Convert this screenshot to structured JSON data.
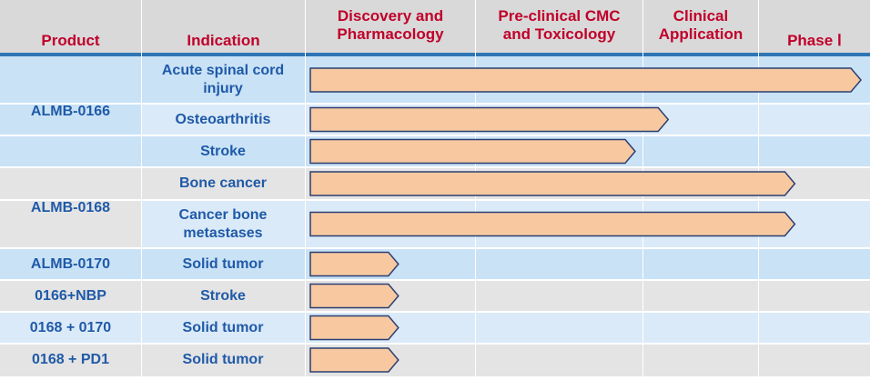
{
  "headers": {
    "product": "Product",
    "indication": "Indication",
    "stage1": [
      "Discovery and",
      "Pharmacology"
    ],
    "stage2": [
      "Pre-clinical CMC",
      "and Toxicology"
    ],
    "stage3": [
      "Clinical",
      "Application"
    ],
    "stage4": "Phase Ⅰ"
  },
  "groups": [
    {
      "product": "ALMB-0166",
      "rows": [
        0,
        1,
        2
      ]
    },
    {
      "product": "ALMB-0168",
      "rows": [
        3,
        4
      ]
    },
    {
      "product": "ALMB-0170",
      "rows": [
        5
      ]
    },
    {
      "product": "0166+NBP",
      "rows": [
        6
      ]
    },
    {
      "product": "0168 + 0170",
      "rows": [
        7
      ]
    },
    {
      "product": "0168 + PD1",
      "rows": [
        8
      ]
    }
  ],
  "rows": [
    {
      "indication": [
        "Acute spinal cord",
        "injury"
      ],
      "progress": 1.0
    },
    {
      "indication": [
        "Osteoarthritis"
      ],
      "progress": 0.65
    },
    {
      "indication": [
        "Stroke"
      ],
      "progress": 0.59
    },
    {
      "indication": [
        "Bone cancer"
      ],
      "progress": 0.88
    },
    {
      "indication": [
        "Cancer bone",
        "metastases"
      ],
      "progress": 0.88
    },
    {
      "indication": [
        "Solid tumor"
      ],
      "progress": 0.16
    },
    {
      "indication": [
        "Stroke"
      ],
      "progress": 0.16
    },
    {
      "indication": [
        "Solid tumor"
      ],
      "progress": 0.16
    },
    {
      "indication": [
        "Solid tumor"
      ],
      "progress": 0.16
    }
  ],
  "colors": {
    "header_bg": "#d9d9d9",
    "header_text": "#c0002a",
    "body_text": "#1f5aa8",
    "arrow_fill": "#f8c9a0",
    "arrow_stroke": "#2a3f73",
    "row_blue_light": "#dbeaf8",
    "row_blue": "#c9e2f6",
    "row_gray": "#e4e4e4"
  }
}
